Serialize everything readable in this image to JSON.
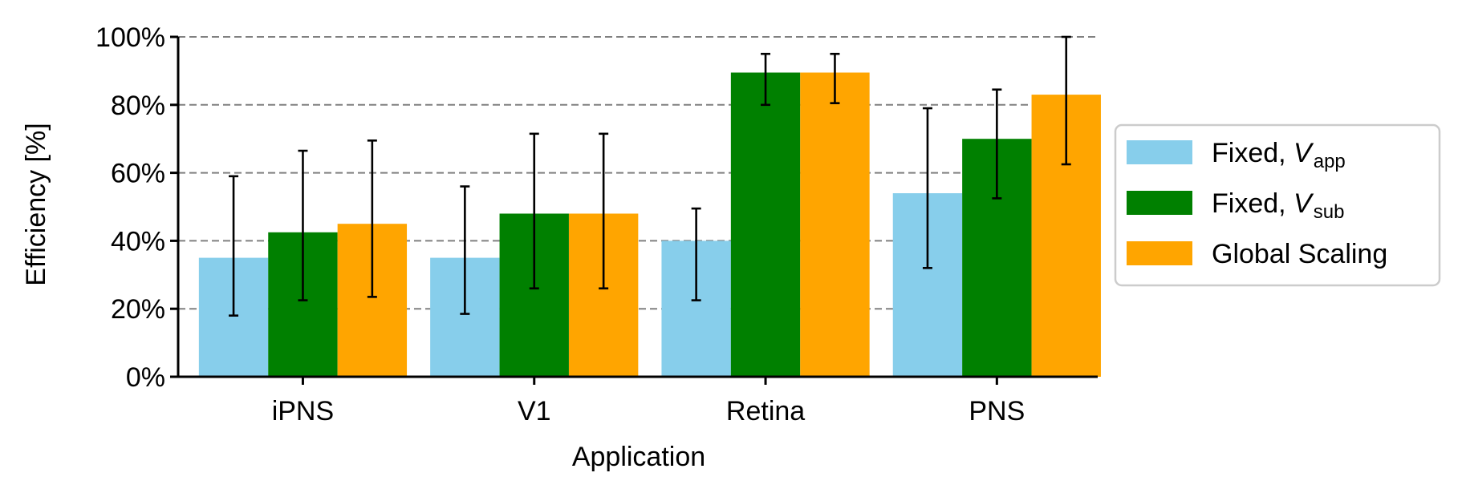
{
  "chart_data": {
    "type": "bar",
    "xlabel": "Application",
    "ylabel": "Efficiency [%]",
    "ylim": [
      0,
      100
    ],
    "yticks": [
      0,
      20,
      40,
      60,
      80,
      100
    ],
    "ytick_labels": [
      "0%",
      "20%",
      "40%",
      "60%",
      "80%",
      "100%"
    ],
    "grid": "horizontal dashed",
    "categories": [
      "iPNS",
      "V1",
      "Retina",
      "PNS"
    ],
    "series": [
      {
        "name": "Fixed, V_app",
        "label_main": "Fixed, ",
        "label_var": "V",
        "label_sub": "app",
        "color": "#87CEEB",
        "values": [
          35,
          35,
          40,
          54
        ],
        "err_low": [
          18,
          18.5,
          22.5,
          32
        ],
        "err_high": [
          59,
          56,
          49.5,
          79
        ]
      },
      {
        "name": "Fixed, V_sub",
        "label_main": "Fixed, ",
        "label_var": "V",
        "label_sub": "sub",
        "color": "#008000",
        "values": [
          42.5,
          48,
          89.5,
          70
        ],
        "err_low": [
          22.5,
          26,
          80,
          52.5
        ],
        "err_high": [
          66.5,
          71.5,
          95,
          84.5
        ]
      },
      {
        "name": "Global Scaling",
        "label_main": "Global Scaling",
        "label_var": "",
        "label_sub": "",
        "color": "#FFA500",
        "values": [
          45,
          48,
          89.5,
          83
        ],
        "err_low": [
          23.5,
          26,
          80.5,
          62.5
        ],
        "err_high": [
          69.5,
          71.5,
          95,
          100
        ]
      }
    ],
    "legend_position": "right"
  }
}
